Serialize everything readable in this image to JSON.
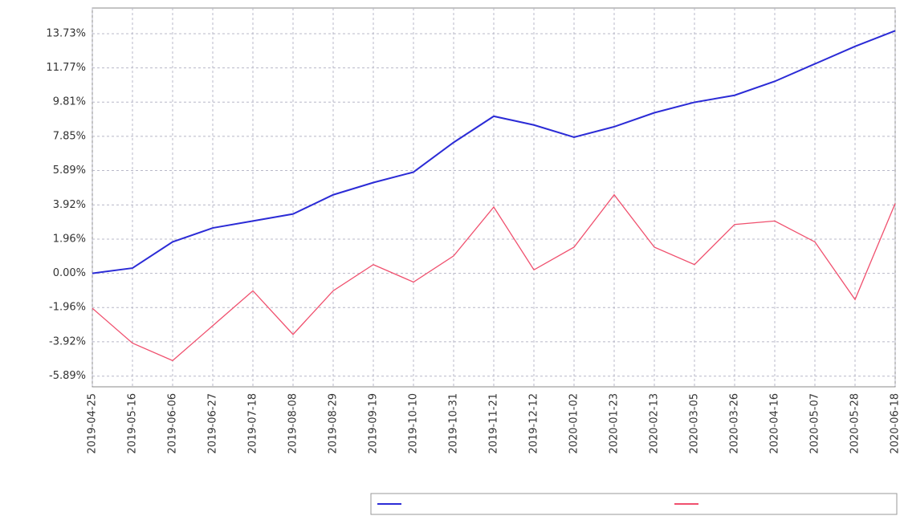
{
  "chart_data": {
    "type": "line",
    "categories": [
      "2019-04-25",
      "2019-05-16",
      "2019-06-06",
      "2019-06-27",
      "2019-07-18",
      "2019-08-08",
      "2019-08-29",
      "2019-09-19",
      "2019-10-10",
      "2019-10-31",
      "2019-11-21",
      "2019-12-12",
      "2020-01-02",
      "2020-01-23",
      "2020-02-13",
      "2020-03-05",
      "2020-03-26",
      "2020-04-16",
      "2020-05-07",
      "2020-05-28",
      "2020-06-18"
    ],
    "series": [
      {
        "color": "#2b2bd6",
        "values": [
          0,
          0.3,
          1.8,
          2.6,
          3.0,
          3.4,
          4.5,
          5.2,
          5.8,
          7.5,
          9.0,
          8.5,
          7.8,
          8.4,
          9.2,
          9.8,
          10.2,
          11.0,
          12.0,
          13.0,
          13.9
        ]
      },
      {
        "color": "#f0506e",
        "values": [
          -2,
          -4,
          -5,
          -3,
          -1,
          -3.5,
          -1,
          0.5,
          -0.5,
          1,
          3.8,
          0.2,
          1.5,
          4.5,
          1.5,
          0.5,
          2.8,
          3.0,
          1.8,
          -1.5,
          4.0
        ]
      }
    ],
    "ylim": [
      -6.5,
      15.2
    ],
    "yticks": [
      {
        "value": -5.89,
        "label": "-5.89%"
      },
      {
        "value": -3.92,
        "label": "-3.92%"
      },
      {
        "value": -1.96,
        "label": "-1.96%"
      },
      {
        "value": 0,
        "label": "0.00%"
      },
      {
        "value": 1.96,
        "label": "1.96%"
      },
      {
        "value": 3.92,
        "label": "3.92%"
      },
      {
        "value": 5.89,
        "label": "5.89%"
      },
      {
        "value": 7.85,
        "label": "7.85%"
      },
      {
        "value": 9.81,
        "label": "9.81%"
      },
      {
        "value": 11.77,
        "label": "11.77%"
      },
      {
        "value": 13.73,
        "label": "13.73%"
      }
    ],
    "grid": true
  }
}
